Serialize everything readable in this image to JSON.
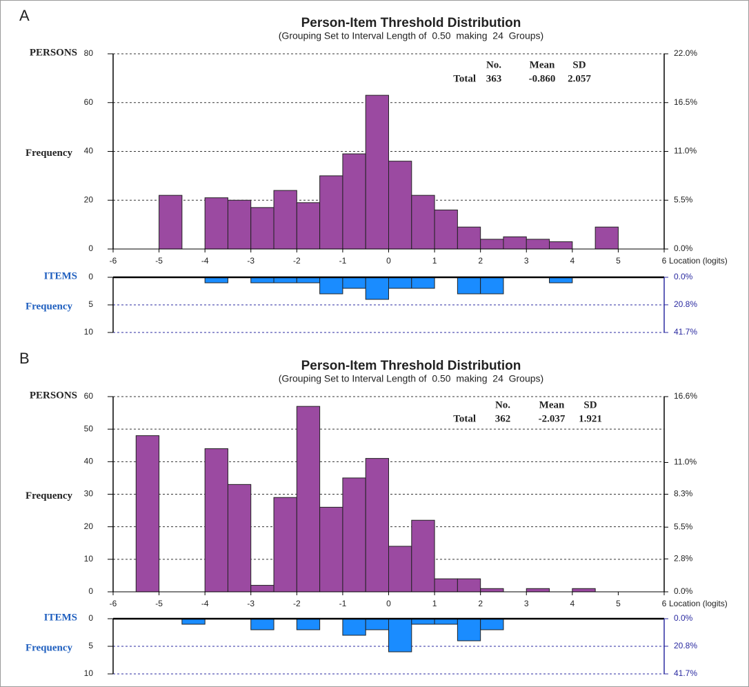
{
  "chart_data": [
    {
      "type": "histogram",
      "panel": "A",
      "title": "Person-Item Threshold Distribution",
      "subtitle": "(Grouping Set to Interval Length of  0.50  making  24  Groups)",
      "y_label_top": "PERSONS",
      "y_label": "Frequency",
      "x_label": "Location (logits)",
      "bins": [
        -6,
        -5.5,
        -5,
        -4.5,
        -4,
        -3.5,
        -3,
        -2.5,
        -2,
        -1.5,
        -1,
        -0.5,
        0,
        0.5,
        1,
        1.5,
        2,
        2.5,
        3,
        3.5,
        4,
        4.5,
        5,
        5.5,
        6
      ],
      "values": [
        0,
        0,
        22,
        0,
        21,
        20,
        17,
        24,
        19,
        30,
        39,
        63,
        36,
        22,
        16,
        9,
        4,
        5,
        4,
        3,
        0,
        9,
        0,
        0
      ],
      "color": "#9b4aa1",
      "xlim": [
        -6,
        6
      ],
      "xticks": [
        -6,
        -5,
        -4,
        -3,
        -2,
        -1,
        0,
        1,
        2,
        3,
        4,
        5,
        6
      ],
      "ylim": [
        0,
        80
      ],
      "yticks": [
        0,
        20,
        40,
        60,
        80
      ],
      "y2lim": [
        0,
        22
      ],
      "y2ticks": [
        {
          "value": 0,
          "label": "0.0%"
        },
        {
          "value": 5.5,
          "label": "5.5%"
        },
        {
          "value": 11,
          "label": "11.0%"
        },
        {
          "value": 16.5,
          "label": "16.5%"
        },
        {
          "value": 22,
          "label": "22.0%"
        }
      ],
      "grid": true,
      "stats": {
        "header": [
          "No.",
          "Mean",
          "SD"
        ],
        "row_label": "Total",
        "values": [
          363,
          -0.86,
          2.057
        ],
        "value_labels": [
          "363",
          "-0.860",
          "2.057"
        ]
      }
    },
    {
      "type": "histogram",
      "y_label_top": "ITEMS",
      "y_label": "Frequency",
      "bins": [
        -6,
        -5.5,
        -5,
        -4.5,
        -4,
        -3.5,
        -3,
        -2.5,
        -2,
        -1.5,
        -1,
        -0.5,
        0,
        0.5,
        1,
        1.5,
        2,
        2.5,
        3,
        3.5,
        4,
        4.5,
        5,
        5.5,
        6
      ],
      "values": [
        0,
        0,
        0,
        0,
        1,
        0,
        1,
        1,
        1,
        3,
        2,
        4,
        2,
        2,
        0,
        3,
        3,
        0,
        0,
        1,
        0,
        0,
        0,
        0
      ],
      "color": "#1a8cff",
      "xlim": [
        -6,
        6
      ],
      "ylim": [
        0,
        10
      ],
      "yticks": [
        0,
        5,
        10
      ],
      "inverted": true,
      "y2lim": [
        0,
        41.7
      ],
      "y2ticks": [
        {
          "value": 0,
          "label": "0.0%"
        },
        {
          "value": 20.8,
          "label": "20.8%"
        },
        {
          "value": 41.7,
          "label": "41.7%"
        }
      ],
      "grid": true
    },
    {
      "type": "histogram",
      "panel": "B",
      "title": "Person-Item Threshold Distribution",
      "subtitle": "(Grouping Set to Interval Length of  0.50  making  24  Groups)",
      "y_label_top": "PERSONS",
      "y_label": "Frequency",
      "x_label": "Location (logits)",
      "bins": [
        -6,
        -5.5,
        -5,
        -4.5,
        -4,
        -3.5,
        -3,
        -2.5,
        -2,
        -1.5,
        -1,
        -0.5,
        0,
        0.5,
        1,
        1.5,
        2,
        2.5,
        3,
        3.5,
        4,
        4.5,
        5,
        5.5,
        6
      ],
      "values": [
        0,
        48,
        0,
        0,
        44,
        33,
        2,
        29,
        57,
        26,
        35,
        41,
        14,
        22,
        4,
        4,
        1,
        0,
        1,
        0,
        1,
        0,
        0,
        0
      ],
      "color": "#9b4aa1",
      "xlim": [
        -6,
        6
      ],
      "xticks": [
        -6,
        -5,
        -4,
        -3,
        -2,
        -1,
        0,
        1,
        2,
        3,
        4,
        5,
        6
      ],
      "ylim": [
        0,
        60
      ],
      "yticks": [
        0,
        10,
        20,
        30,
        40,
        50,
        60
      ],
      "y2lim": [
        0,
        16.6
      ],
      "y2ticks": [
        {
          "value": 0,
          "label": "0.0%"
        },
        {
          "value": 2.8,
          "label": "2.8%"
        },
        {
          "value": 5.5,
          "label": "5.5%"
        },
        {
          "value": 8.3,
          "label": "8.3%"
        },
        {
          "value": 11,
          "label": "11.0%"
        },
        {
          "value": 16.6,
          "label": "16.6%"
        }
      ],
      "grid": true,
      "stats": {
        "header": [
          "No.",
          "Mean",
          "SD"
        ],
        "row_label": "Total",
        "values": [
          362,
          -2.037,
          1.921
        ],
        "value_labels": [
          "362",
          "-2.037",
          "1.921"
        ]
      }
    },
    {
      "type": "histogram",
      "y_label_top": "ITEMS",
      "y_label": "Frequency",
      "bins": [
        -6,
        -5.5,
        -5,
        -4.5,
        -4,
        -3.5,
        -3,
        -2.5,
        -2,
        -1.5,
        -1,
        -0.5,
        0,
        0.5,
        1,
        1.5,
        2,
        2.5,
        3,
        3.5,
        4,
        4.5,
        5,
        5.5,
        6
      ],
      "values": [
        0,
        0,
        0,
        1,
        0,
        0,
        2,
        0,
        2,
        0,
        3,
        2,
        6,
        1,
        1,
        4,
        2,
        0,
        0,
        0,
        0,
        0,
        0,
        0
      ],
      "color": "#1a8cff",
      "xlim": [
        -6,
        6
      ],
      "ylim": [
        0,
        10
      ],
      "yticks": [
        0,
        5,
        10
      ],
      "inverted": true,
      "y2lim": [
        0,
        41.7
      ],
      "y2ticks": [
        {
          "value": 0,
          "label": "0.0%"
        },
        {
          "value": 20.8,
          "label": "20.8%"
        },
        {
          "value": 41.7,
          "label": "41.7%"
        }
      ],
      "grid": true
    }
  ]
}
